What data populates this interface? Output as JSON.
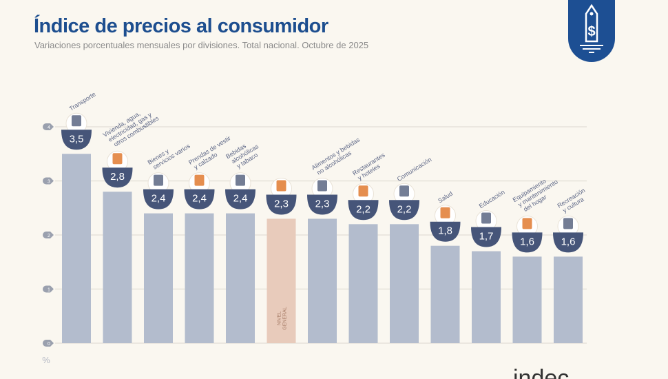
{
  "title": "Índice de precios al consumidor",
  "subtitle": "Variaciones porcentuales mensuales por divisiones. Total nacional. Octubre de 2025",
  "logo_text": "indec",
  "colors": {
    "title": "#1d4e8f",
    "bar": "#b3bccd",
    "bar_highlight": "#e8cbbb",
    "value_badge": "#465579",
    "icon_accent": "#e07a30",
    "grid": "#e6e2da"
  },
  "chart_data": {
    "type": "bar",
    "ylabel": "%",
    "ylim": [
      0,
      4
    ],
    "yticks": [
      "0",
      "1",
      "2",
      "3",
      "4"
    ],
    "grid": true,
    "categories": [
      "Transporte",
      "Vivienda, agua,\nelectricidad, gas y\notros combustibles",
      "Bienes y\nservicios varios",
      "Prendas de vestir\ny calzado",
      "Bebidas\nalcohólicas\ny tabaco",
      "NIVEL\nGENERAL",
      "Alimentos y bebidas\nno alcohólicas",
      "Restaurantes\ny hoteles",
      "Comunicación",
      "Salud",
      "Educación",
      "Equipamiento\ny mantenimiento\ndel hogar",
      "Recreación\ny cultura"
    ],
    "values": [
      3.5,
      2.8,
      2.4,
      2.4,
      2.4,
      2.3,
      2.3,
      2.2,
      2.2,
      1.8,
      1.7,
      1.6,
      1.6
    ],
    "value_labels": [
      "3,5",
      "2,8",
      "2,4",
      "2,4",
      "2,4",
      "2,3",
      "2,3",
      "2,2",
      "2,2",
      "1,8",
      "1,7",
      "1,6",
      "1,6"
    ],
    "highlight_index": 5,
    "icons": [
      "car-icon",
      "lightbulb-icon",
      "tools-icon",
      "tshirt-icon",
      "bottle-icon",
      "shopping-basket-icon",
      "chicken-icon",
      "plate-cutlery-icon",
      "smartphone-icon",
      "first-aid-icon",
      "notebook-icon",
      "air-conditioner-icon",
      "umbrella-sun-icon"
    ]
  }
}
